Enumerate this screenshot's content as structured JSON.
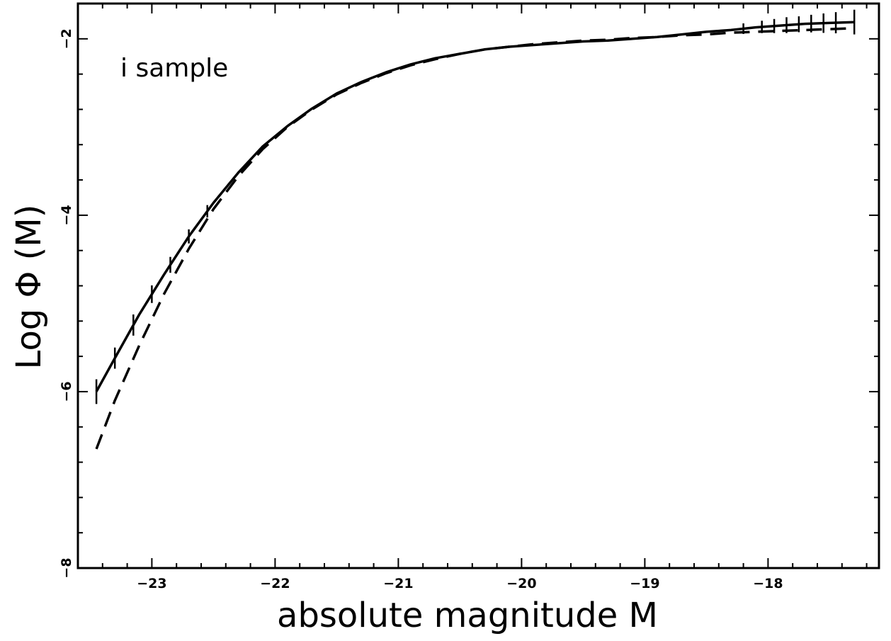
{
  "chart_data": {
    "type": "line",
    "title": "",
    "xlabel": "absolute magnitude M",
    "ylabel": "Log Φ (M)",
    "annotation": "i sample",
    "xlim": [
      -23.6,
      -17.1
    ],
    "ylim": [
      -8,
      -1.6
    ],
    "x_ticks": [
      {
        "value": -23,
        "label": "−23"
      },
      {
        "value": -22,
        "label": "−22"
      },
      {
        "value": -21,
        "label": "−21"
      },
      {
        "value": -20,
        "label": "−20"
      },
      {
        "value": -19,
        "label": "−19"
      },
      {
        "value": -18,
        "label": "−18"
      }
    ],
    "y_ticks": [
      {
        "value": -2,
        "label": "−2"
      },
      {
        "value": -4,
        "label": "−4"
      },
      {
        "value": -6,
        "label": "−6"
      },
      {
        "value": -8,
        "label": "−8"
      }
    ],
    "grid": false,
    "series": [
      {
        "style": "solid",
        "x": [
          -23.45,
          -23.3,
          -23.1,
          -22.9,
          -22.7,
          -22.5,
          -22.3,
          -22.1,
          -21.9,
          -21.7,
          -21.5,
          -21.3,
          -21.1,
          -20.9,
          -20.7,
          -20.5,
          -20.3,
          -20.1,
          -19.9,
          -19.7,
          -19.5,
          -19.3,
          -19.1,
          -18.9,
          -18.7,
          -18.5,
          -18.3,
          -18.1,
          -17.9,
          -17.7,
          -17.5,
          -17.3
        ],
        "y": [
          -6.0,
          -5.62,
          -5.12,
          -4.67,
          -4.24,
          -3.86,
          -3.52,
          -3.22,
          -2.99,
          -2.79,
          -2.62,
          -2.49,
          -2.38,
          -2.29,
          -2.22,
          -2.17,
          -2.12,
          -2.09,
          -2.07,
          -2.05,
          -2.03,
          -2.02,
          -2.0,
          -1.98,
          -1.95,
          -1.92,
          -1.9,
          -1.87,
          -1.85,
          -1.83,
          -1.82,
          -1.81
        ]
      },
      {
        "style": "dashed",
        "x": [
          -23.45,
          -23.3,
          -23.1,
          -22.9,
          -22.7,
          -22.5,
          -22.3,
          -22.1,
          -21.9,
          -21.7,
          -21.5,
          -21.3,
          -21.1,
          -20.9,
          -20.7,
          -20.5,
          -20.3,
          -20.1,
          -19.9,
          -19.7,
          -19.5,
          -19.3,
          -19.1,
          -18.9,
          -18.7,
          -18.5,
          -18.3,
          -18.1,
          -17.9,
          -17.7,
          -17.5,
          -17.3
        ],
        "y": [
          -6.65,
          -6.1,
          -5.47,
          -4.89,
          -4.38,
          -3.93,
          -3.56,
          -3.25,
          -3.0,
          -2.8,
          -2.63,
          -2.5,
          -2.39,
          -2.3,
          -2.23,
          -2.17,
          -2.12,
          -2.09,
          -2.06,
          -2.04,
          -2.02,
          -2.01,
          -1.99,
          -1.98,
          -1.96,
          -1.95,
          -1.93,
          -1.92,
          -1.91,
          -1.9,
          -1.89,
          -1.88
        ]
      }
    ],
    "error_bars_x": [
      -23.45,
      -23.3,
      -23.15,
      -23.0,
      -22.85,
      -22.7,
      -22.55,
      -18.2,
      -18.05,
      -17.95,
      -17.85,
      -17.75,
      -17.65,
      -17.55,
      -17.45,
      -17.3
    ],
    "error_bars_half": [
      0.14,
      0.12,
      0.12,
      0.1,
      0.09,
      0.08,
      0.07,
      0.06,
      0.07,
      0.08,
      0.09,
      0.09,
      0.1,
      0.11,
      0.12,
      0.14
    ]
  }
}
